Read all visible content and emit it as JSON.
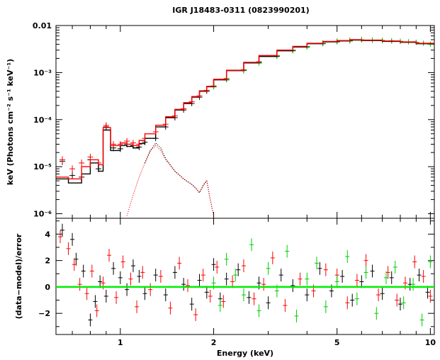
{
  "chart_data": [
    {
      "type": "line",
      "panel": "spectrum",
      "title": "IGR J18483-0311 (0823990201)",
      "ylabel": "keV (Photons cm⁻² s⁻¹ keV⁻¹)",
      "xlabel": "",
      "xscale": "log",
      "yscale": "log",
      "xlim": [
        0.62,
        10.3
      ],
      "ylim": [
        8e-07,
        0.01
      ],
      "y_tick_labels": [
        "10⁻⁶",
        "10⁻⁵",
        "10⁻⁴",
        "10⁻³",
        "0.01"
      ],
      "y_ticks": [
        1e-06,
        1e-05,
        0.0001,
        0.001,
        0.01
      ],
      "grid": false,
      "legend": "none",
      "series": [
        {
          "color": "#000000",
          "style": "data crosses",
          "x": [
            0.65,
            0.7,
            0.75,
            0.8,
            0.85,
            0.9,
            0.95,
            1.0,
            1.05,
            1.1,
            1.15,
            1.2,
            1.3,
            1.4,
            1.5,
            1.6,
            1.7,
            1.8,
            1.9,
            2.0,
            2.2,
            2.5,
            2.8,
            3.2,
            3.6,
            4.0,
            4.5,
            5.0,
            5.5,
            6.0,
            6.5,
            7.0,
            7.5,
            8.0,
            8.5,
            9.0,
            9.5,
            10.0
          ],
          "y": [
            1.3e-05,
            6.5e-06,
            6e-06,
            1.4e-05,
            9e-06,
            7e-05,
            2.5e-05,
            2.4e-05,
            3e-05,
            2.8e-05,
            2.6e-05,
            3.3e-05,
            4e-05,
            7e-05,
            0.00011,
            0.00016,
            0.00022,
            0.0003,
            0.0004,
            0.0005,
            0.0007,
            0.0011,
            0.0016,
            0.0022,
            0.0029,
            0.0035,
            0.0041,
            0.0045,
            0.0047,
            0.0049,
            0.0049,
            0.0048,
            0.0047,
            0.0046,
            0.0045,
            0.0044,
            0.0042,
            0.0041
          ]
        },
        {
          "color": "#ff0000",
          "style": "data crosses",
          "x": [
            0.65,
            0.7,
            0.75,
            0.8,
            0.85,
            0.9,
            0.95,
            1.0,
            1.05,
            1.1,
            1.15,
            1.2,
            1.3,
            1.4,
            1.5,
            1.6,
            1.7,
            1.8,
            1.9,
            2.0,
            2.2,
            2.5,
            2.8,
            3.2,
            3.6,
            4.0,
            4.5,
            5.0,
            5.5,
            6.0,
            6.5,
            7.0,
            7.5,
            8.0,
            8.5,
            9.0,
            9.5,
            10.0
          ],
          "y": [
            1.4e-05,
            9e-06,
            1.2e-05,
            1.6e-05,
            1.2e-05,
            7.5e-05,
            3e-05,
            3e-05,
            3.5e-05,
            3.2e-05,
            3e-05,
            4e-05,
            5.5e-05,
            8e-05,
            0.00012,
            0.00017,
            0.00024,
            0.00032,
            0.00042,
            0.00052,
            0.00075,
            0.00115,
            0.0017,
            0.0023,
            0.003,
            0.0036,
            0.0042,
            0.0046,
            0.0048,
            0.005,
            0.0049,
            0.0048,
            0.0047,
            0.0046,
            0.0045,
            0.0044,
            0.0042,
            0.0041
          ]
        },
        {
          "color": "#00cc00",
          "style": "data crosses",
          "x": [
            2.0,
            2.2,
            2.5,
            2.8,
            3.2,
            3.6,
            4.0,
            4.5,
            5.0,
            5.5,
            6.0,
            6.5,
            7.0,
            7.5,
            8.0,
            8.5,
            9.0,
            9.5,
            10.0
          ],
          "y": [
            0.00052,
            0.00074,
            0.00112,
            0.00165,
            0.0023,
            0.003,
            0.0036,
            0.0042,
            0.0046,
            0.0048,
            0.005,
            0.0049,
            0.0048,
            0.0047,
            0.0046,
            0.0045,
            0.0044,
            0.0042,
            0.004
          ]
        },
        {
          "color": "#000000",
          "style": "model step",
          "x": [
            0.62,
            0.68,
            0.75,
            0.8,
            0.85,
            0.88,
            0.93,
            0.97,
            1.0,
            1.05,
            1.1,
            1.15,
            1.2,
            1.3,
            1.4,
            1.5,
            1.6,
            1.7,
            1.8,
            1.9,
            2.0,
            2.2,
            2.5,
            2.8,
            3.2,
            3.6,
            4.0,
            4.5,
            5.0,
            5.5,
            6.0,
            7.0,
            8.0,
            9.0,
            10.3
          ],
          "y": [
            5.5e-06,
            4.5e-06,
            7e-06,
            1.2e-05,
            8e-06,
            6e-05,
            2.2e-05,
            2.2e-05,
            2.8e-05,
            2.7e-05,
            2.5e-05,
            3.1e-05,
            4e-05,
            7e-05,
            0.00011,
            0.00016,
            0.00022,
            0.0003,
            0.0004,
            0.0005,
            0.0007,
            0.0011,
            0.0016,
            0.0022,
            0.0029,
            0.0035,
            0.0041,
            0.0045,
            0.0047,
            0.0049,
            0.0048,
            0.0046,
            0.0044,
            0.0041,
            0.004
          ]
        },
        {
          "color": "#ff0000",
          "style": "model step",
          "x": [
            0.62,
            0.68,
            0.75,
            0.8,
            0.85,
            0.88,
            0.93,
            0.97,
            1.0,
            1.05,
            1.1,
            1.15,
            1.2,
            1.3,
            1.4,
            1.5,
            1.6,
            1.7,
            1.8,
            1.9,
            2.0,
            2.2,
            2.5,
            2.8,
            3.2,
            3.6,
            4.0,
            4.5,
            5.0,
            5.5,
            6.0,
            7.0,
            8.0,
            9.0,
            10.3
          ],
          "y": [
            6e-06,
            5.5e-06,
            1e-05,
            1.4e-05,
            1.1e-05,
            6.8e-05,
            2.8e-05,
            2.8e-05,
            3.2e-05,
            3e-05,
            2.8e-05,
            3.6e-05,
            5e-05,
            7.6e-05,
            0.000115,
            0.000165,
            0.00023,
            0.00031,
            0.00041,
            0.00051,
            0.00072,
            0.00112,
            0.00165,
            0.0023,
            0.003,
            0.0036,
            0.0042,
            0.0046,
            0.0048,
            0.005,
            0.0049,
            0.0047,
            0.0045,
            0.0042,
            0.0041
          ]
        },
        {
          "color": "#000000",
          "style": "model component dotted",
          "x": [
            1.2,
            1.25,
            1.3,
            1.35,
            1.4,
            1.5,
            1.6,
            1.7,
            1.75,
            1.8,
            1.85,
            1.9,
            1.95,
            2.0
          ],
          "y": [
            1.2e-05,
            2.2e-05,
            3.2e-05,
            2.5e-05,
            1.5e-05,
            8e-06,
            5.5e-06,
            4.2e-06,
            3.5e-06,
            2.8e-06,
            4e-06,
            5e-06,
            2e-06,
            9e-07
          ]
        },
        {
          "color": "#ff0000",
          "style": "model component dotted",
          "x": [
            1.05,
            1.1,
            1.15,
            1.2,
            1.25,
            1.3,
            1.35,
            1.4,
            1.5,
            1.6,
            1.7,
            1.75,
            1.8,
            1.85,
            1.9,
            1.95,
            2.0
          ],
          "y": [
            9e-07,
            2.5e-06,
            6e-06,
            1.2e-05,
            2.2e-05,
            2.8e-05,
            2.2e-05,
            1.4e-05,
            8e-06,
            5.5e-06,
            4.2e-06,
            3.5e-06,
            2.8e-06,
            4e-06,
            5.2e-06,
            2e-06,
            9e-07
          ]
        }
      ]
    },
    {
      "type": "scatter",
      "panel": "residuals",
      "title": "",
      "xlabel": "Energy (keV)",
      "ylabel": "(data−model)/error",
      "xscale": "log",
      "xlim": [
        0.62,
        10.3
      ],
      "ylim": [
        -3.6,
        5.2
      ],
      "y_ticks": [
        -2,
        0,
        2,
        4
      ],
      "y_tick_labels": [
        "−2",
        "0",
        "2",
        "4"
      ],
      "x_ticks": [
        1,
        2,
        5,
        10
      ],
      "x_tick_labels": [
        "1",
        "2",
        "5",
        "10"
      ],
      "grid": false,
      "legend": "none",
      "zero_line_color": "#00ee00",
      "series": [
        {
          "color": "#000000",
          "x": [
            0.65,
            0.7,
            0.72,
            0.76,
            0.8,
            0.83,
            0.86,
            0.9,
            0.95,
            1.0,
            1.05,
            1.1,
            1.15,
            1.2,
            1.3,
            1.4,
            1.5,
            1.6,
            1.7,
            1.8,
            1.9,
            2.0,
            2.1,
            2.2,
            2.4,
            2.6,
            2.8,
            3.0,
            3.3,
            3.6,
            4.0,
            4.4,
            4.8,
            5.2,
            5.6,
            6.0,
            6.5,
            7.0,
            7.5,
            8.0,
            8.6,
            9.2,
            9.8
          ],
          "y": [
            4.3,
            3.6,
            2.1,
            1.2,
            -2.5,
            -1.1,
            0.4,
            -0.7,
            1.4,
            0.7,
            -0.2,
            1.6,
            0.8,
            -0.5,
            0.9,
            -0.6,
            1.1,
            0.2,
            -1.3,
            0.5,
            -0.4,
            1.7,
            -0.9,
            0.6,
            1.3,
            -0.8,
            0.3,
            -1.2,
            0.9,
            0.1,
            -0.6,
            1.4,
            -0.3,
            0.8,
            -1.0,
            0.4,
            1.2,
            -0.5,
            0.7,
            -1.3,
            0.2,
            0.9,
            -0.4
          ]
        },
        {
          "color": "#ff0000",
          "x": [
            0.64,
            0.68,
            0.71,
            0.74,
            0.78,
            0.81,
            0.84,
            0.88,
            0.92,
            0.97,
            1.02,
            1.08,
            1.13,
            1.18,
            1.25,
            1.35,
            1.45,
            1.55,
            1.65,
            1.75,
            1.85,
            1.95,
            2.05,
            2.15,
            2.3,
            2.5,
            2.7,
            2.9,
            3.1,
            3.4,
            3.8,
            4.2,
            4.6,
            5.0,
            5.4,
            5.8,
            6.2,
            6.8,
            7.3,
            7.8,
            8.3,
            8.9,
            9.5,
            10.0
          ],
          "y": [
            3.8,
            2.9,
            1.7,
            0.2,
            -0.5,
            1.2,
            -1.8,
            0.3,
            2.4,
            -0.8,
            1.9,
            0.6,
            -1.5,
            1.1,
            -0.2,
            0.8,
            -1.6,
            1.8,
            0.1,
            -2.1,
            0.9,
            -0.7,
            1.5,
            -1.1,
            0.4,
            1.6,
            -0.9,
            0.2,
            2.2,
            -1.4,
            0.6,
            -0.3,
            1.3,
            0.9,
            -1.2,
            0.5,
            2.0,
            -0.6,
            1.1,
            -1.0,
            0.3,
            1.9,
            0.8,
            -0.7
          ]
        },
        {
          "color": "#00cc00",
          "x": [
            2.0,
            2.1,
            2.2,
            2.35,
            2.5,
            2.65,
            2.8,
            3.0,
            3.2,
            3.45,
            3.7,
            4.0,
            4.3,
            4.6,
            5.0,
            5.4,
            5.8,
            6.2,
            6.7,
            7.2,
            7.7,
            8.2,
            8.8,
            9.4,
            10.0
          ],
          "y": [
            0.3,
            -1.4,
            2.1,
            0.9,
            -0.6,
            3.2,
            -1.8,
            1.4,
            -0.3,
            2.7,
            -2.2,
            0.6,
            1.8,
            -1.5,
            0.4,
            2.3,
            -0.9,
            1.1,
            -2.0,
            0.7,
            1.5,
            -1.2,
            0.2,
            -2.5,
            1.9
          ]
        }
      ]
    }
  ]
}
